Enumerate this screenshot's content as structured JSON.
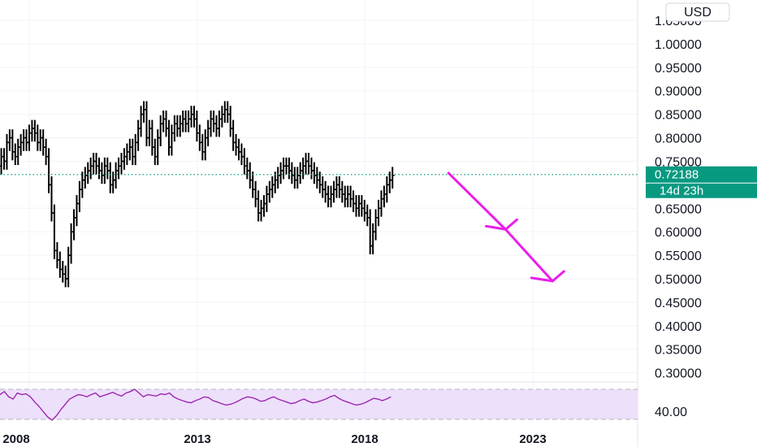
{
  "chart_data": {
    "type": "ohlc",
    "currency_label": "USD",
    "y_axis": {
      "range": [
        0.26,
        1.07
      ],
      "ticks": [
        "1.05000",
        "1.00000",
        "0.95000",
        "0.90000",
        "0.85000",
        "0.80000",
        "0.75000",
        "0.65000",
        "0.60000",
        "0.55000",
        "0.50000",
        "0.45000",
        "0.40000",
        "0.35000",
        "0.30000"
      ]
    },
    "x_axis": {
      "range": [
        2007.0,
        2025.5
      ],
      "ticks": [
        {
          "label": "2008",
          "x": 2008
        },
        {
          "label": "2013",
          "x": 2013
        },
        {
          "label": "2018",
          "x": 2018
        },
        {
          "label": "2023",
          "x": 2023
        }
      ]
    },
    "last_price": {
      "label": "0.72188",
      "value": 0.72188,
      "countdown": "14d 23h",
      "color": "#089981"
    },
    "price_bars": {
      "start": 2007.0,
      "step_years": 0.0833,
      "closes": [
        0.73,
        0.74,
        0.76,
        0.75,
        0.79,
        0.8,
        0.77,
        0.76,
        0.78,
        0.79,
        0.8,
        0.79,
        0.81,
        0.82,
        0.81,
        0.79,
        0.8,
        0.78,
        0.76,
        0.7,
        0.64,
        0.56,
        0.54,
        0.52,
        0.51,
        0.5,
        0.55,
        0.6,
        0.63,
        0.66,
        0.69,
        0.71,
        0.72,
        0.73,
        0.74,
        0.75,
        0.74,
        0.73,
        0.72,
        0.74,
        0.73,
        0.7,
        0.71,
        0.73,
        0.74,
        0.75,
        0.76,
        0.77,
        0.78,
        0.76,
        0.79,
        0.82,
        0.85,
        0.86,
        0.8,
        0.82,
        0.78,
        0.76,
        0.8,
        0.83,
        0.84,
        0.82,
        0.78,
        0.81,
        0.83,
        0.82,
        0.83,
        0.84,
        0.83,
        0.84,
        0.85,
        0.84,
        0.81,
        0.79,
        0.77,
        0.8,
        0.82,
        0.84,
        0.83,
        0.82,
        0.84,
        0.85,
        0.86,
        0.85,
        0.82,
        0.79,
        0.78,
        0.77,
        0.76,
        0.74,
        0.73,
        0.71,
        0.69,
        0.67,
        0.64,
        0.65,
        0.66,
        0.68,
        0.69,
        0.7,
        0.71,
        0.72,
        0.73,
        0.74,
        0.74,
        0.73,
        0.72,
        0.71,
        0.72,
        0.73,
        0.74,
        0.75,
        0.74,
        0.73,
        0.72,
        0.71,
        0.7,
        0.69,
        0.68,
        0.67,
        0.68,
        0.69,
        0.7,
        0.69,
        0.68,
        0.67,
        0.68,
        0.67,
        0.66,
        0.65,
        0.66,
        0.65,
        0.64,
        0.63,
        0.57,
        0.6,
        0.63,
        0.65,
        0.67,
        0.68,
        0.7,
        0.71,
        0.72
      ],
      "color": "#000000"
    },
    "projection": {
      "color": "#e91ee9",
      "points": [
        [
          2020.5,
          0.725
        ],
        [
          2022.2,
          0.605
        ],
        [
          2022.2,
          0.605
        ],
        [
          2023.6,
          0.495
        ]
      ]
    },
    "indicator": {
      "label": "40.00",
      "band_color": "#ede0fb",
      "line_color": "#9c27b0",
      "values": [
        60,
        58,
        62,
        55,
        52,
        60,
        58,
        59,
        55,
        48,
        42,
        35,
        28,
        24,
        30,
        38,
        45,
        52,
        55,
        58,
        57,
        55,
        58,
        60,
        55,
        57,
        59,
        61,
        58,
        56,
        60,
        62,
        65,
        60,
        55,
        58,
        57,
        56,
        59,
        58,
        60,
        55,
        52,
        50,
        48,
        47,
        50,
        52,
        55,
        54,
        50,
        48,
        46,
        44,
        45,
        47,
        50,
        53,
        55,
        54,
        52,
        49,
        50,
        53,
        55,
        52,
        50,
        48,
        46,
        47,
        50,
        52,
        49,
        47,
        48,
        50,
        52,
        55,
        57,
        53,
        50,
        48,
        46,
        44,
        45,
        47,
        50,
        53,
        52,
        50,
        52,
        55
      ]
    }
  }
}
